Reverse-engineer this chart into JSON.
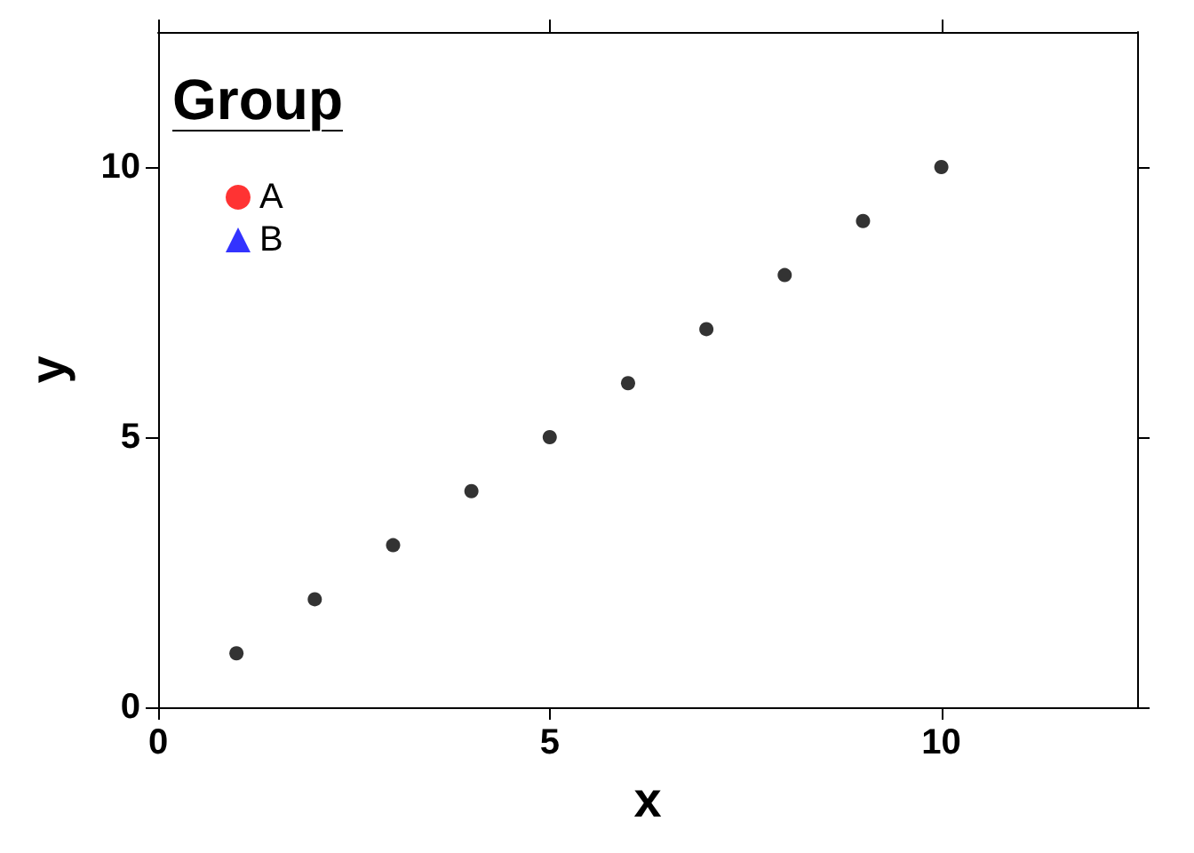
{
  "chart_data": {
    "type": "scatter",
    "xlabel": "x",
    "ylabel": "y",
    "legend_title": "Group",
    "legend": "top left",
    "grid": false,
    "xlim": [
      0,
      12.5
    ],
    "ylim": [
      0,
      12.5
    ],
    "xticks": [
      0,
      5,
      10
    ],
    "yticks": [
      0,
      5,
      10
    ],
    "series": [
      {
        "color": "#000000",
        "marker": "circle",
        "x": [
          1,
          2,
          3,
          4,
          5,
          6,
          7,
          8,
          9,
          10
        ],
        "values": [
          1,
          2,
          3,
          4,
          5,
          6,
          7,
          8,
          9,
          10
        ]
      },
      {
        "name": "A",
        "color": "#ff0000",
        "marker": "circle"
      },
      {
        "name": "B",
        "color": "#0000ff",
        "marker": "triangle"
      }
    ]
  }
}
